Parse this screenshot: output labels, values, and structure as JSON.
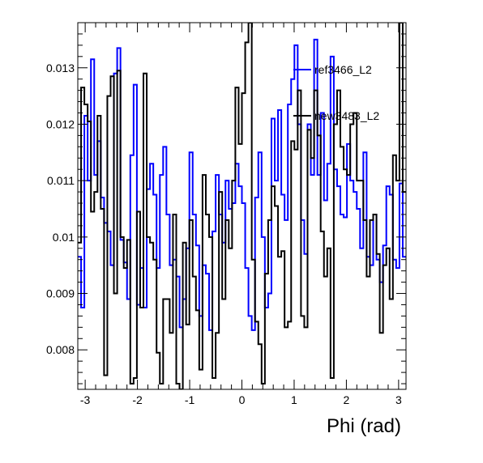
{
  "chart_data": {
    "type": "line",
    "title": "",
    "xlabel": "Phi (rad)",
    "ylabel": "",
    "xlim": [
      -3.1416,
      3.1416
    ],
    "ylim": [
      0.0073,
      0.0138
    ],
    "grid": false,
    "legend_placement": "top-right",
    "x_ticks": [
      -3,
      -2,
      -1,
      0,
      1,
      2,
      3
    ],
    "x_tick_labels": [
      "-3",
      "-2",
      "-1",
      "0",
      "1",
      "2",
      "3"
    ],
    "y_ticks": [
      0.008,
      0.009,
      0.01,
      0.011,
      0.012,
      0.013
    ],
    "y_tick_labels": [
      "0.008",
      "0.009",
      "0.01",
      "0.011",
      "0.012",
      "0.013"
    ],
    "bins": 100,
    "series": [
      {
        "name": "ref3466_L2",
        "color": "#0000ff",
        "values": [
          0.00965,
          0.00875,
          0.01215,
          0.011,
          0.01315,
          0.0111,
          0.0117,
          0.0107,
          0.01025,
          0.0101,
          0.0095,
          0.0129,
          0.01335,
          0.00995,
          0.00955,
          0.0089,
          0.01145,
          0.0127,
          0.0088,
          0.00945,
          0.00875,
          0.01085,
          0.0113,
          0.01075,
          0.00945,
          0.0111,
          0.0116,
          0.0104,
          0.0095,
          0.0096,
          0.0093,
          0.0084,
          0.0089,
          0.0098,
          0.0115,
          0.0104,
          0.00985,
          0.0086,
          0.0095,
          0.00935,
          0.00835,
          0.0101,
          0.0111,
          0.0104,
          0.0099,
          0.011,
          0.0105,
          0.0106,
          0.0113,
          0.0109,
          0.0106,
          0.00945,
          0.0086,
          0.00835,
          0.0107,
          0.0115,
          0.01,
          0.00875,
          0.009,
          0.0121,
          0.011,
          0.01225,
          0.01075,
          0.0103,
          0.01235,
          0.0128,
          0.0134,
          0.012,
          0.0103,
          0.0097,
          0.012,
          0.0111,
          0.0135,
          0.0111,
          0.0122,
          0.01065,
          0.0113,
          0.0132,
          0.0112,
          0.0109,
          0.0104,
          0.01035,
          0.01165,
          0.011,
          0.0108,
          0.0105,
          0.0098,
          0.0115,
          0.00965,
          0.0095,
          0.0104,
          0.0096,
          0.0092,
          0.00985,
          0.0109,
          0.01075,
          0.0096,
          0.00945,
          0.01095,
          0.00965
        ]
      },
      {
        "name": "new3483_L2",
        "color": "#000000",
        "values": [
          0.0099,
          0.01265,
          0.01235,
          0.01205,
          0.01045,
          0.0108,
          0.01215,
          0.0105,
          0.00755,
          0.0125,
          0.01285,
          0.009,
          0.01295,
          0.01,
          0.00945,
          0.00995,
          0.0074,
          0.0075,
          0.01045,
          0.00875,
          0.0129,
          0.01,
          0.0099,
          0.0096,
          0.00795,
          0.0074,
          0.0089,
          0.0089,
          0.0083,
          0.0104,
          0.0074,
          0.0073,
          0.0099,
          0.00845,
          0.0103,
          0.0093,
          0.0087,
          0.00765,
          0.0111,
          0.0104,
          0.01,
          0.0075,
          0.0083,
          0.0108,
          0.0089,
          0.0103,
          0.0098,
          0.011,
          0.01265,
          0.01165,
          0.01255,
          0.01345,
          0.0138,
          0.0096,
          0.0085,
          0.0081,
          0.0074,
          0.00935,
          0.0103,
          0.0109,
          0.01055,
          0.00965,
          0.00975,
          0.0084,
          0.0085,
          0.0117,
          0.01155,
          0.0126,
          0.0086,
          0.0084,
          0.0119,
          0.0114,
          0.0126,
          0.0118,
          0.0101,
          0.0093,
          0.0098,
          0.0075,
          0.012,
          0.0126,
          0.0116,
          0.0112,
          0.0111,
          0.012,
          0.0122,
          0.011,
          0.011,
          0.0103,
          0.0093,
          0.0103,
          0.0104,
          0.0097,
          0.0083,
          0.0095,
          0.0098,
          0.0089,
          0.01145,
          0.011,
          0.0138,
          0.0108
        ]
      }
    ]
  }
}
